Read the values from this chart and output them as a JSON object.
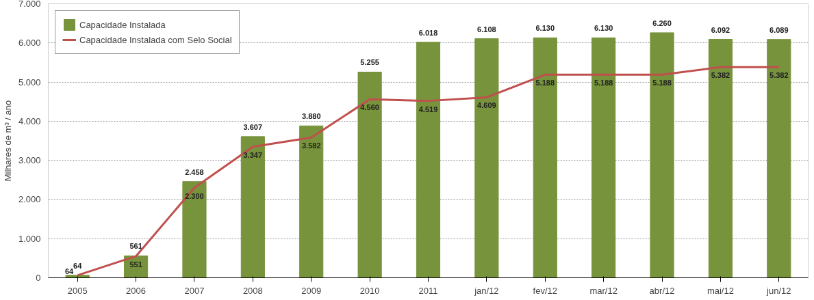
{
  "chart_data": {
    "type": "bar",
    "ylabel": "Milhares de m³ / ano",
    "categories": [
      "2005",
      "2006",
      "2007",
      "2008",
      "2009",
      "2010",
      "2011",
      "jan/12",
      "fev/12",
      "mar/12",
      "abr/12",
      "mai/12",
      "jun/12"
    ],
    "series": [
      {
        "name": "Capacidade Instalada",
        "color": "#77933c",
        "values": [
          64,
          561,
          2458,
          3607,
          3880,
          5255,
          6018,
          6108,
          6130,
          6130,
          6260,
          6092,
          6089
        ],
        "value_labels": [
          "64",
          "561",
          "2.458",
          "3.607",
          "3.880",
          "5.255",
          "6.018",
          "6.108",
          "6.130",
          "6.130",
          "6.260",
          "6.092",
          "6.089"
        ]
      },
      {
        "name": "Capacidade Instalada com Selo Social",
        "type": "line",
        "color": "#c0504d",
        "values": [
          64,
          551,
          2300,
          3347,
          3582,
          4560,
          4519,
          4609,
          5188,
          5188,
          5188,
          5382,
          5382
        ],
        "value_labels": [
          "64",
          "551",
          "2.300",
          "3.347",
          "3.582",
          "4.560",
          "4.519",
          "4.609",
          "5.188",
          "5.188",
          "5.188",
          "5.382",
          "5.382"
        ]
      }
    ],
    "ylim": [
      0,
      7000
    ],
    "yticks": [
      {
        "value": 0,
        "label": "0"
      },
      {
        "value": 1000,
        "label": "1.000"
      },
      {
        "value": 2000,
        "label": "2.000"
      },
      {
        "value": 3000,
        "label": "3.000"
      },
      {
        "value": 4000,
        "label": "4.000"
      },
      {
        "value": 5000,
        "label": "5.000"
      },
      {
        "value": 6000,
        "label": "6.000"
      },
      {
        "value": 7000,
        "label": "7.000"
      }
    ],
    "grid": "y",
    "legend": "top left"
  }
}
